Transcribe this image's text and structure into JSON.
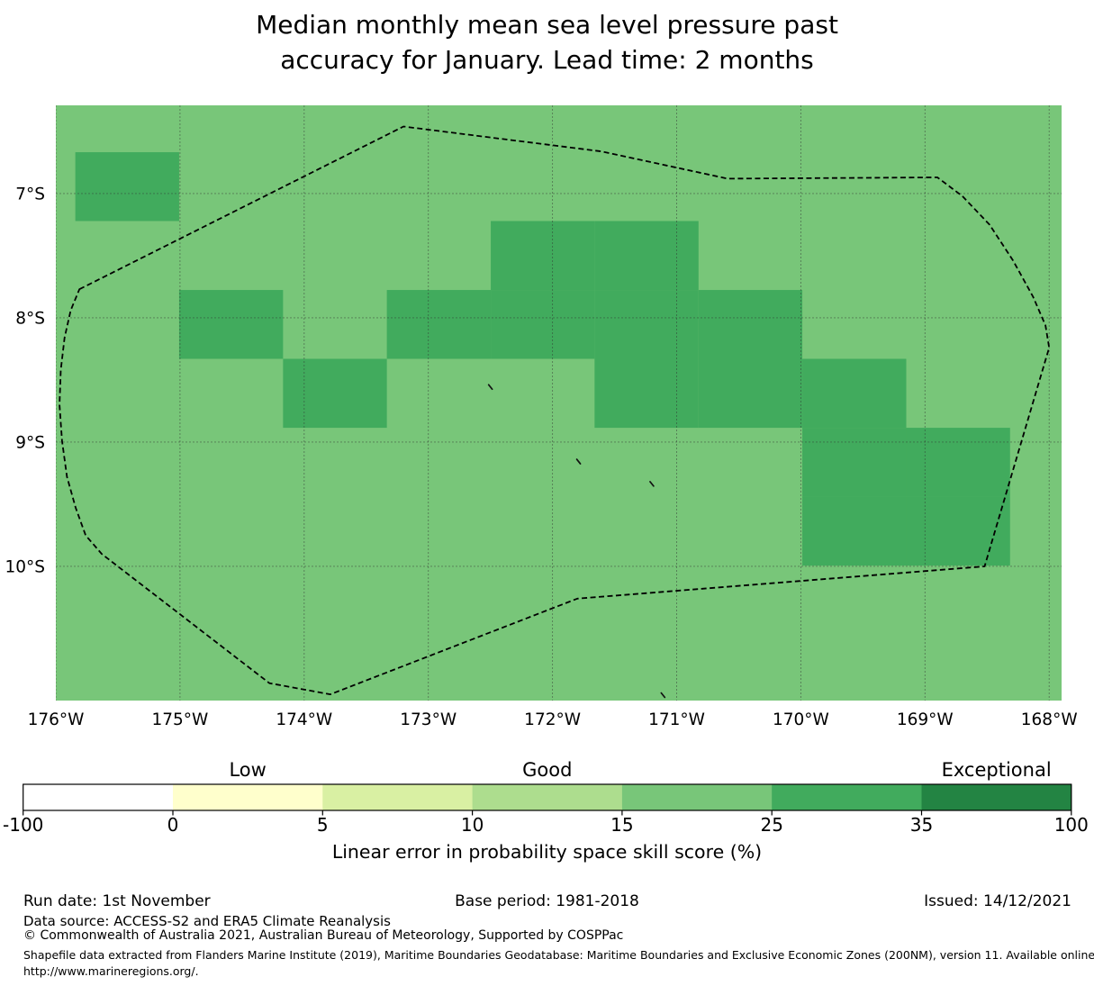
{
  "title": {
    "line1": "Median monthly mean sea level pressure past",
    "line2": "accuracy for January. Lead time: 2 months"
  },
  "chart_data": {
    "type": "heatmap",
    "description": "Gridded forecast skill map over a Pacific EEZ region with dashed maritime boundary",
    "lon_axis": {
      "left_w": 176.0,
      "right_w": 167.9,
      "ticks": [
        {
          "lon": 176,
          "label": "176°W"
        },
        {
          "lon": 175,
          "label": "175°W"
        },
        {
          "lon": 174,
          "label": "174°W"
        },
        {
          "lon": 173,
          "label": "173°W"
        },
        {
          "lon": 172,
          "label": "172°W"
        },
        {
          "lon": 171,
          "label": "171°W"
        },
        {
          "lon": 170,
          "label": "170°W"
        },
        {
          "lon": 169,
          "label": "169°W"
        },
        {
          "lon": 168,
          "label": "168°W"
        }
      ]
    },
    "lat_axis": {
      "top_s": 6.29,
      "bottom_s": 11.08,
      "ticks": [
        {
          "lat": 7,
          "label": "7°S"
        },
        {
          "lat": 8,
          "label": "8°S"
        },
        {
          "lat": 9,
          "label": "9°S"
        },
        {
          "lat": 10,
          "label": "10°S"
        }
      ]
    },
    "grid": {
      "color": "#2f2f2f",
      "opacity": 0.5,
      "dash": "2 2"
    },
    "base_skill": {
      "range_pct": "15-25",
      "color": "#78c679"
    },
    "highlight_skill": {
      "range_pct": "25-35",
      "color": "#41ab5d"
    },
    "cell_grid": {
      "col_boundaries_lon_w": [
        175.843,
        175.007,
        174.17,
        173.334,
        172.497,
        171.661,
        170.824,
        169.988,
        169.151,
        168.315
      ],
      "row_boundaries_lat_s": [
        6.667,
        7.221,
        7.776,
        8.33,
        8.885,
        9.439,
        9.994
      ],
      "highlight_cells_col_row": [
        [
          0,
          0
        ],
        [
          4,
          1
        ],
        [
          5,
          1
        ],
        [
          1,
          2
        ],
        [
          3,
          2
        ],
        [
          4,
          2
        ],
        [
          5,
          2
        ],
        [
          6,
          2
        ],
        [
          2,
          3
        ],
        [
          5,
          3
        ],
        [
          6,
          3
        ],
        [
          7,
          3
        ],
        [
          7,
          4
        ],
        [
          8,
          4
        ],
        [
          7,
          5
        ],
        [
          8,
          5
        ]
      ]
    },
    "eez_boundary": {
      "color": "#000000",
      "style": "dashed",
      "points_lon_lat": [
        [
          175.81,
          7.77
        ],
        [
          173.2,
          6.46
        ],
        [
          171.61,
          6.66
        ],
        [
          170.59,
          6.88
        ],
        [
          168.9,
          6.87
        ],
        [
          168.7,
          7.02
        ],
        [
          168.48,
          7.25
        ],
        [
          168.29,
          7.54
        ],
        [
          168.13,
          7.83
        ],
        [
          168.03,
          8.06
        ],
        [
          168.0,
          8.24
        ],
        [
          168.52,
          10.0
        ],
        [
          171.8,
          10.26
        ],
        [
          173.79,
          11.03
        ],
        [
          174.28,
          10.94
        ],
        [
          175.63,
          9.9
        ],
        [
          175.76,
          9.75
        ],
        [
          175.84,
          9.53
        ],
        [
          175.91,
          9.28
        ],
        [
          175.95,
          8.99
        ],
        [
          175.97,
          8.7
        ],
        [
          175.96,
          8.42
        ],
        [
          175.93,
          8.16
        ],
        [
          175.88,
          7.94
        ]
      ]
    },
    "islands_lon_lat": [
      [
        172.5,
        8.56
      ],
      [
        171.79,
        9.16
      ],
      [
        171.2,
        9.34
      ],
      [
        171.11,
        11.04
      ]
    ],
    "colorbar": {
      "boundaries": [
        -100,
        0,
        5,
        10,
        15,
        25,
        35,
        100
      ],
      "tick_labels": [
        "-100",
        "0",
        "5",
        "10",
        "15",
        "25",
        "35",
        "100"
      ],
      "segment_colors": [
        "#ffffff",
        "#ffffcc",
        "#d9f0a3",
        "#addd8e",
        "#78c679",
        "#41ab5d",
        "#238443"
      ],
      "category_labels": [
        {
          "label": "Low",
          "segment": 1
        },
        {
          "label": "Good",
          "segment": 3
        },
        {
          "label": "Exceptional",
          "segment": 6
        }
      ],
      "axis_label": "Linear error in probability space skill score (%)"
    }
  },
  "footer": {
    "run_date": "Run date: 1st November",
    "base_period": "Base period: 1981-2018",
    "issued": "Issued: 14/12/2021",
    "data_source": "Data source: ACCESS-S2 and ERA5 Climate Reanalysis",
    "copyright": "© Commonwealth of Australia 2021, Australian Bureau of Meteorology, Supported by COSPPac",
    "shapefile_line1": "Shapefile data extracted from Flanders Marine Institute (2019), Maritime Boundaries Geodatabase: Maritime Boundaries and Exclusive Economic Zones (200NM), version 11. Available online at",
    "shapefile_line2": "http://www.marineregions.org/."
  }
}
